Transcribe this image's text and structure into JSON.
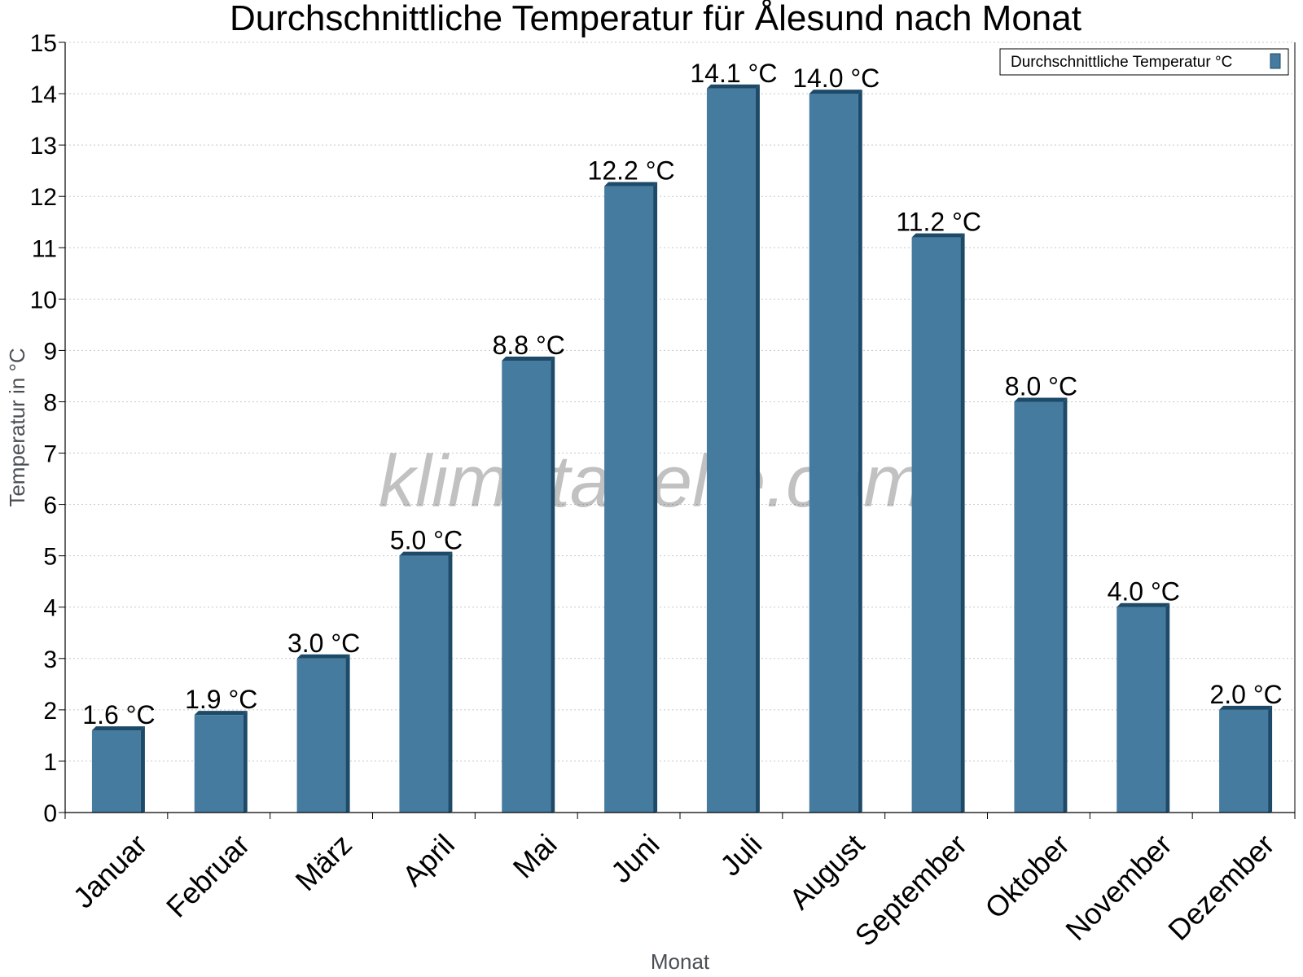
{
  "chart_data": {
    "type": "bar",
    "title": "Durchschnittliche Temperatur für Ålesund nach Monat",
    "xlabel": "Monat",
    "ylabel": "Temperatur in °C",
    "ylim": [
      0,
      15
    ],
    "y_ticks": [
      "0",
      "1",
      "2",
      "3",
      "4",
      "5",
      "6",
      "7",
      "8",
      "9",
      "10",
      "11",
      "12",
      "13",
      "14",
      "15"
    ],
    "grid": true,
    "legend_position": "top-right",
    "categories": [
      "Januar",
      "Februar",
      "März",
      "April",
      "Mai",
      "Juni",
      "Juli",
      "August",
      "September",
      "Oktober",
      "November",
      "Dezember"
    ],
    "series": [
      {
        "name": "Durchschnittliche Temperatur °C",
        "values": [
          1.6,
          1.9,
          3.0,
          5.0,
          8.8,
          12.2,
          14.1,
          14.0,
          11.2,
          8.0,
          4.0,
          2.0
        ],
        "labels": [
          "1.6 °C",
          "1.9 °C",
          "3.0 °C",
          "5.0 °C",
          "8.8 °C",
          "12.2 °C",
          "14.1 °C",
          "14.0 °C",
          "11.2 °C",
          "8.0 °C",
          "4.0 °C",
          "2.0 °C"
        ],
        "color": "#467ba0",
        "shade_color": "#1d4a68"
      }
    ],
    "watermark": "klimatabelle.com"
  }
}
